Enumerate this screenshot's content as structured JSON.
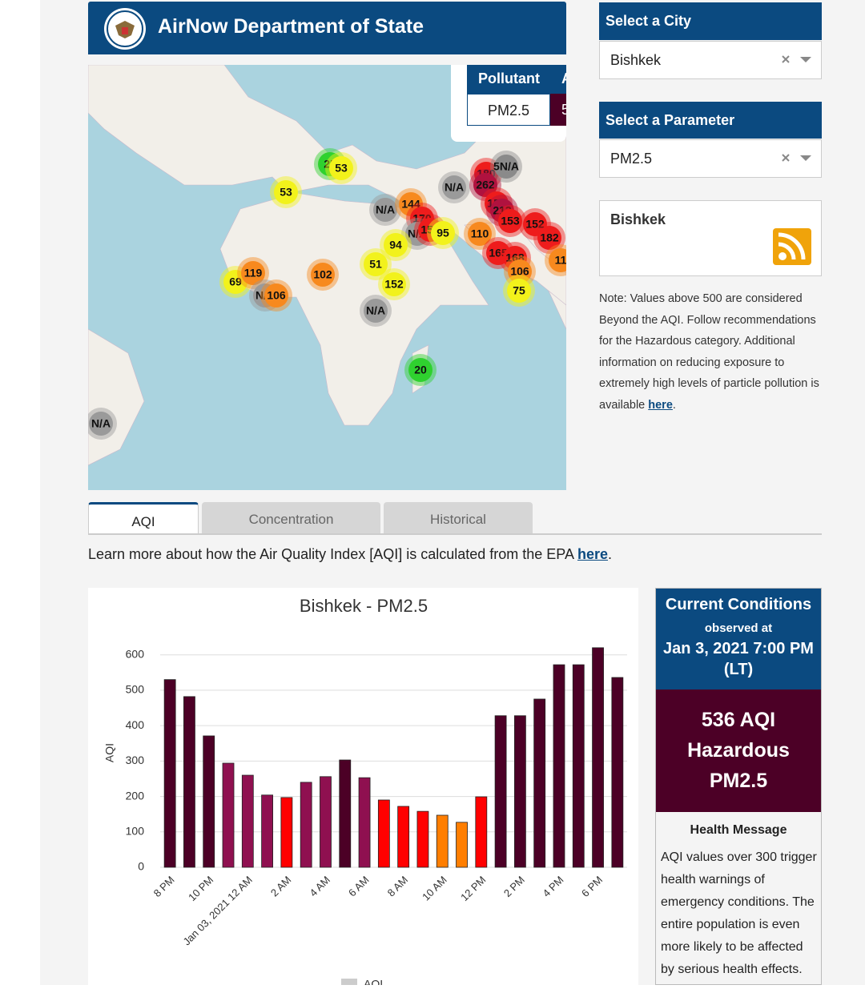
{
  "header": {
    "title": "AirNow Department of State"
  },
  "map": {
    "popup": {
      "headers": [
        "Pollutant",
        "A"
      ],
      "cells": [
        "PM2.5",
        "5"
      ]
    },
    "markers": [
      {
        "label": "25",
        "color": "#2fd12f"
      },
      {
        "label": "53",
        "color": "#f2f21b"
      },
      {
        "label": "53",
        "color": "#f2f21b"
      },
      {
        "label": "N/A",
        "color": "#9a9a9a"
      },
      {
        "label": "180",
        "color": "#ee1c1c"
      },
      {
        "label": "262",
        "color": "#b0123f"
      },
      {
        "label": "5N/A",
        "color": "#8a8a8a"
      },
      {
        "label": "N/A",
        "color": "#9a9a9a"
      },
      {
        "label": "144",
        "color": "#f7891e"
      },
      {
        "label": "170",
        "color": "#ee1c1c"
      },
      {
        "label": "N/A",
        "color": "#9a9a9a"
      },
      {
        "label": "156",
        "color": "#ee1c1c"
      },
      {
        "label": "95",
        "color": "#f2f21b"
      },
      {
        "label": "157",
        "color": "#ee1c1c"
      },
      {
        "label": "213",
        "color": "#b0123f"
      },
      {
        "label": "153",
        "color": "#ee1c1c"
      },
      {
        "label": "152",
        "color": "#ee1c1c"
      },
      {
        "label": "182",
        "color": "#ee1c1c"
      },
      {
        "label": "110",
        "color": "#f7891e"
      },
      {
        "label": "94",
        "color": "#f2f21b"
      },
      {
        "label": "165",
        "color": "#ee1c1c"
      },
      {
        "label": "168",
        "color": "#ee1c1c"
      },
      {
        "label": "106",
        "color": "#f7891e"
      },
      {
        "label": "75",
        "color": "#f2f21b"
      },
      {
        "label": "11",
        "color": "#f7891e"
      },
      {
        "label": "51",
        "color": "#f2f21b"
      },
      {
        "label": "152",
        "color": "#f2f21b"
      },
      {
        "label": "69",
        "color": "#f2f21b"
      },
      {
        "label": "119",
        "color": "#f7891e"
      },
      {
        "label": "N/A",
        "color": "#9a9a9a"
      },
      {
        "label": "106",
        "color": "#f7891e"
      },
      {
        "label": "102",
        "color": "#f7891e"
      },
      {
        "label": "N/A",
        "color": "#9a9a9a"
      },
      {
        "label": "20",
        "color": "#2fd12f"
      },
      {
        "label": "N/A",
        "color": "#9a9a9a"
      }
    ]
  },
  "sidebar": {
    "city": {
      "heading": "Select a City",
      "value": "Bishkek"
    },
    "parameter": {
      "heading": "Select a Parameter",
      "value": "PM2.5"
    },
    "card": {
      "title": "Bishkek"
    },
    "note": {
      "text": "Note: Values above 500 are considered Beyond the AQI. Follow recommendations for the Hazardous category. Additional information on reducing exposure to extremely high levels of particle pollution is available ",
      "link": "here",
      "end": "."
    }
  },
  "tabs": [
    "AQI",
    "Concentration",
    "Historical"
  ],
  "learn": {
    "text": "Learn more about how the Air Quality Index [AQI] is calculated from the EPA ",
    "link": "here",
    "end": "."
  },
  "chart_data": {
    "type": "bar",
    "title": "Bishkek - PM2.5",
    "y_label": "AQI",
    "categories": [
      "8 PM",
      null,
      "10 PM",
      null,
      "Jan 03, 2021 12 AM",
      null,
      "2 AM",
      null,
      "4 AM",
      null,
      "6 AM",
      null,
      "8 AM",
      null,
      "10 AM",
      null,
      "12 PM",
      null,
      "2 PM",
      null,
      "4 PM",
      null,
      "6 PM",
      null
    ],
    "series": [
      {
        "name": "AQI",
        "legend_color": "#cccccc",
        "colors": [
          "#4c0026",
          "#4c0026",
          "#4c0026",
          "#8f1050",
          "#8f1050",
          "#8f1050",
          "#ff0000",
          "#8f1050",
          "#8f1050",
          "#4c0026",
          "#8f1050",
          "#ff0000",
          "#ff0000",
          "#ff0000",
          "#ff7e00",
          "#ff7e00",
          "#ff0000",
          "#4c0026",
          "#4c0026",
          "#4c0026",
          "#4c0026",
          "#4c0026",
          "#4c0026",
          "#4c0026"
        ],
        "values": [
          530,
          482,
          371,
          294,
          260,
          204,
          197,
          240,
          256,
          303,
          253,
          190,
          172,
          158,
          147,
          127,
          199,
          428,
          428,
          475,
          572,
          572,
          620,
          536
        ]
      }
    ],
    "ylim": [
      0,
      640
    ],
    "yticks": [
      0,
      100,
      200,
      300,
      400,
      500,
      600
    ],
    "grid": true
  },
  "conditions": {
    "heading": "Current Conditions",
    "observed": "observed at",
    "time": "Jan 3, 2021 7:00 PM",
    "zone": "(LT)",
    "aqi": "536 AQI",
    "category": "Hazardous",
    "pollutant": "PM2.5",
    "health_heading": "Health Message",
    "health_text": "AQI values over 300 trigger health warnings of emergency conditions. The entire population is even more likely to be affected by serious health effects."
  }
}
